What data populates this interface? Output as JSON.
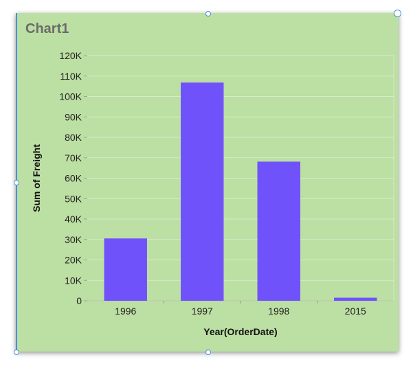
{
  "title": "Chart1",
  "chart_data": {
    "type": "bar",
    "categories": [
      "1996",
      "1997",
      "1998",
      "2015"
    ],
    "values": [
      30500,
      106800,
      68100,
      1500
    ],
    "xlabel": "Year(OrderDate)",
    "ylabel": "Sum of Freight",
    "ylim": [
      0,
      120000
    ],
    "yticks": [
      "0",
      "10K",
      "20K",
      "30K",
      "40K",
      "50K",
      "60K",
      "70K",
      "80K",
      "90K",
      "100K",
      "110K",
      "120K"
    ],
    "grid": true,
    "bar_color": "#7052fa",
    "background_color": "#bcdfa3"
  }
}
